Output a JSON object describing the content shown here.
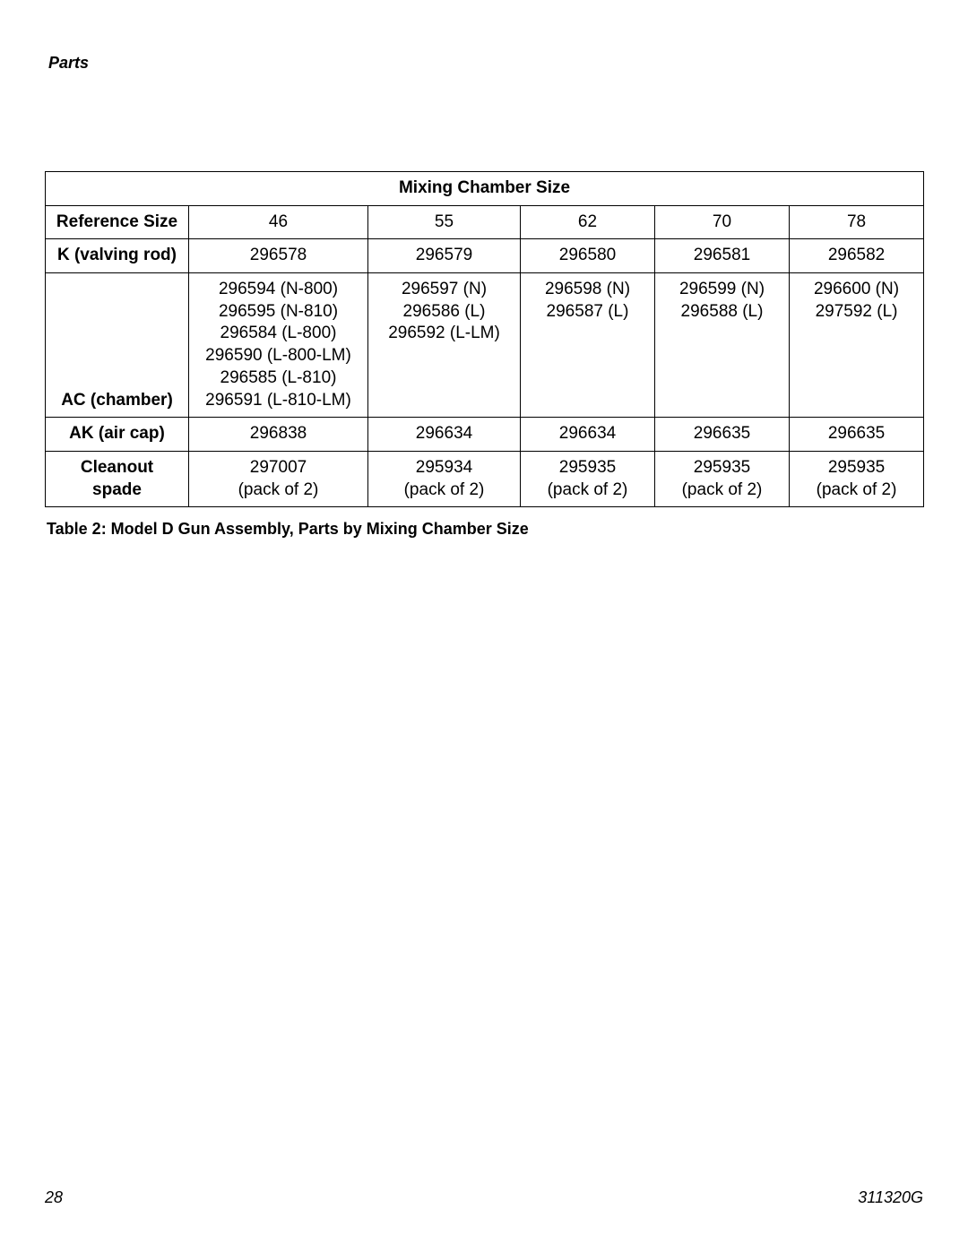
{
  "header": {
    "section": "Parts"
  },
  "table": {
    "title": "Mixing Chamber Size",
    "row_labels": {
      "reference_size": "Reference Size",
      "k_valving_rod": "K (valving rod)",
      "ac_chamber": "AC (chamber)",
      "ak_air_cap": "AK (air cap)",
      "cleanout_spade": "Cleanout\nspade"
    },
    "reference_size": [
      "46",
      "55",
      "62",
      "70",
      "78"
    ],
    "k_valving_rod": [
      "296578",
      "296579",
      "296580",
      "296581",
      "296582"
    ],
    "ac_chamber": [
      "296594 (N-800)\n296595 (N-810)\n296584 (L-800)\n296590 (L-800-LM)\n296585 (L-810)\n296591 (L-810-LM)",
      "296597 (N)\n296586 (L)\n296592 (L-LM)",
      "296598 (N)\n296587 (L)",
      "296599 (N)\n296588 (L)",
      "296600 (N)\n297592 (L)"
    ],
    "ak_air_cap": [
      "296838",
      "296634",
      "296634",
      "296635",
      "296635"
    ],
    "cleanout_spade": [
      "297007\n(pack of 2)",
      "295934\n(pack of 2)",
      "295935\n(pack of 2)",
      "295935\n(pack of 2)",
      "295935\n(pack of 2)"
    ]
  },
  "caption": "Table 2: Model D Gun Assembly, Parts by Mixing Chamber Size",
  "footer": {
    "page_number": "28",
    "doc_id": "311320G"
  }
}
